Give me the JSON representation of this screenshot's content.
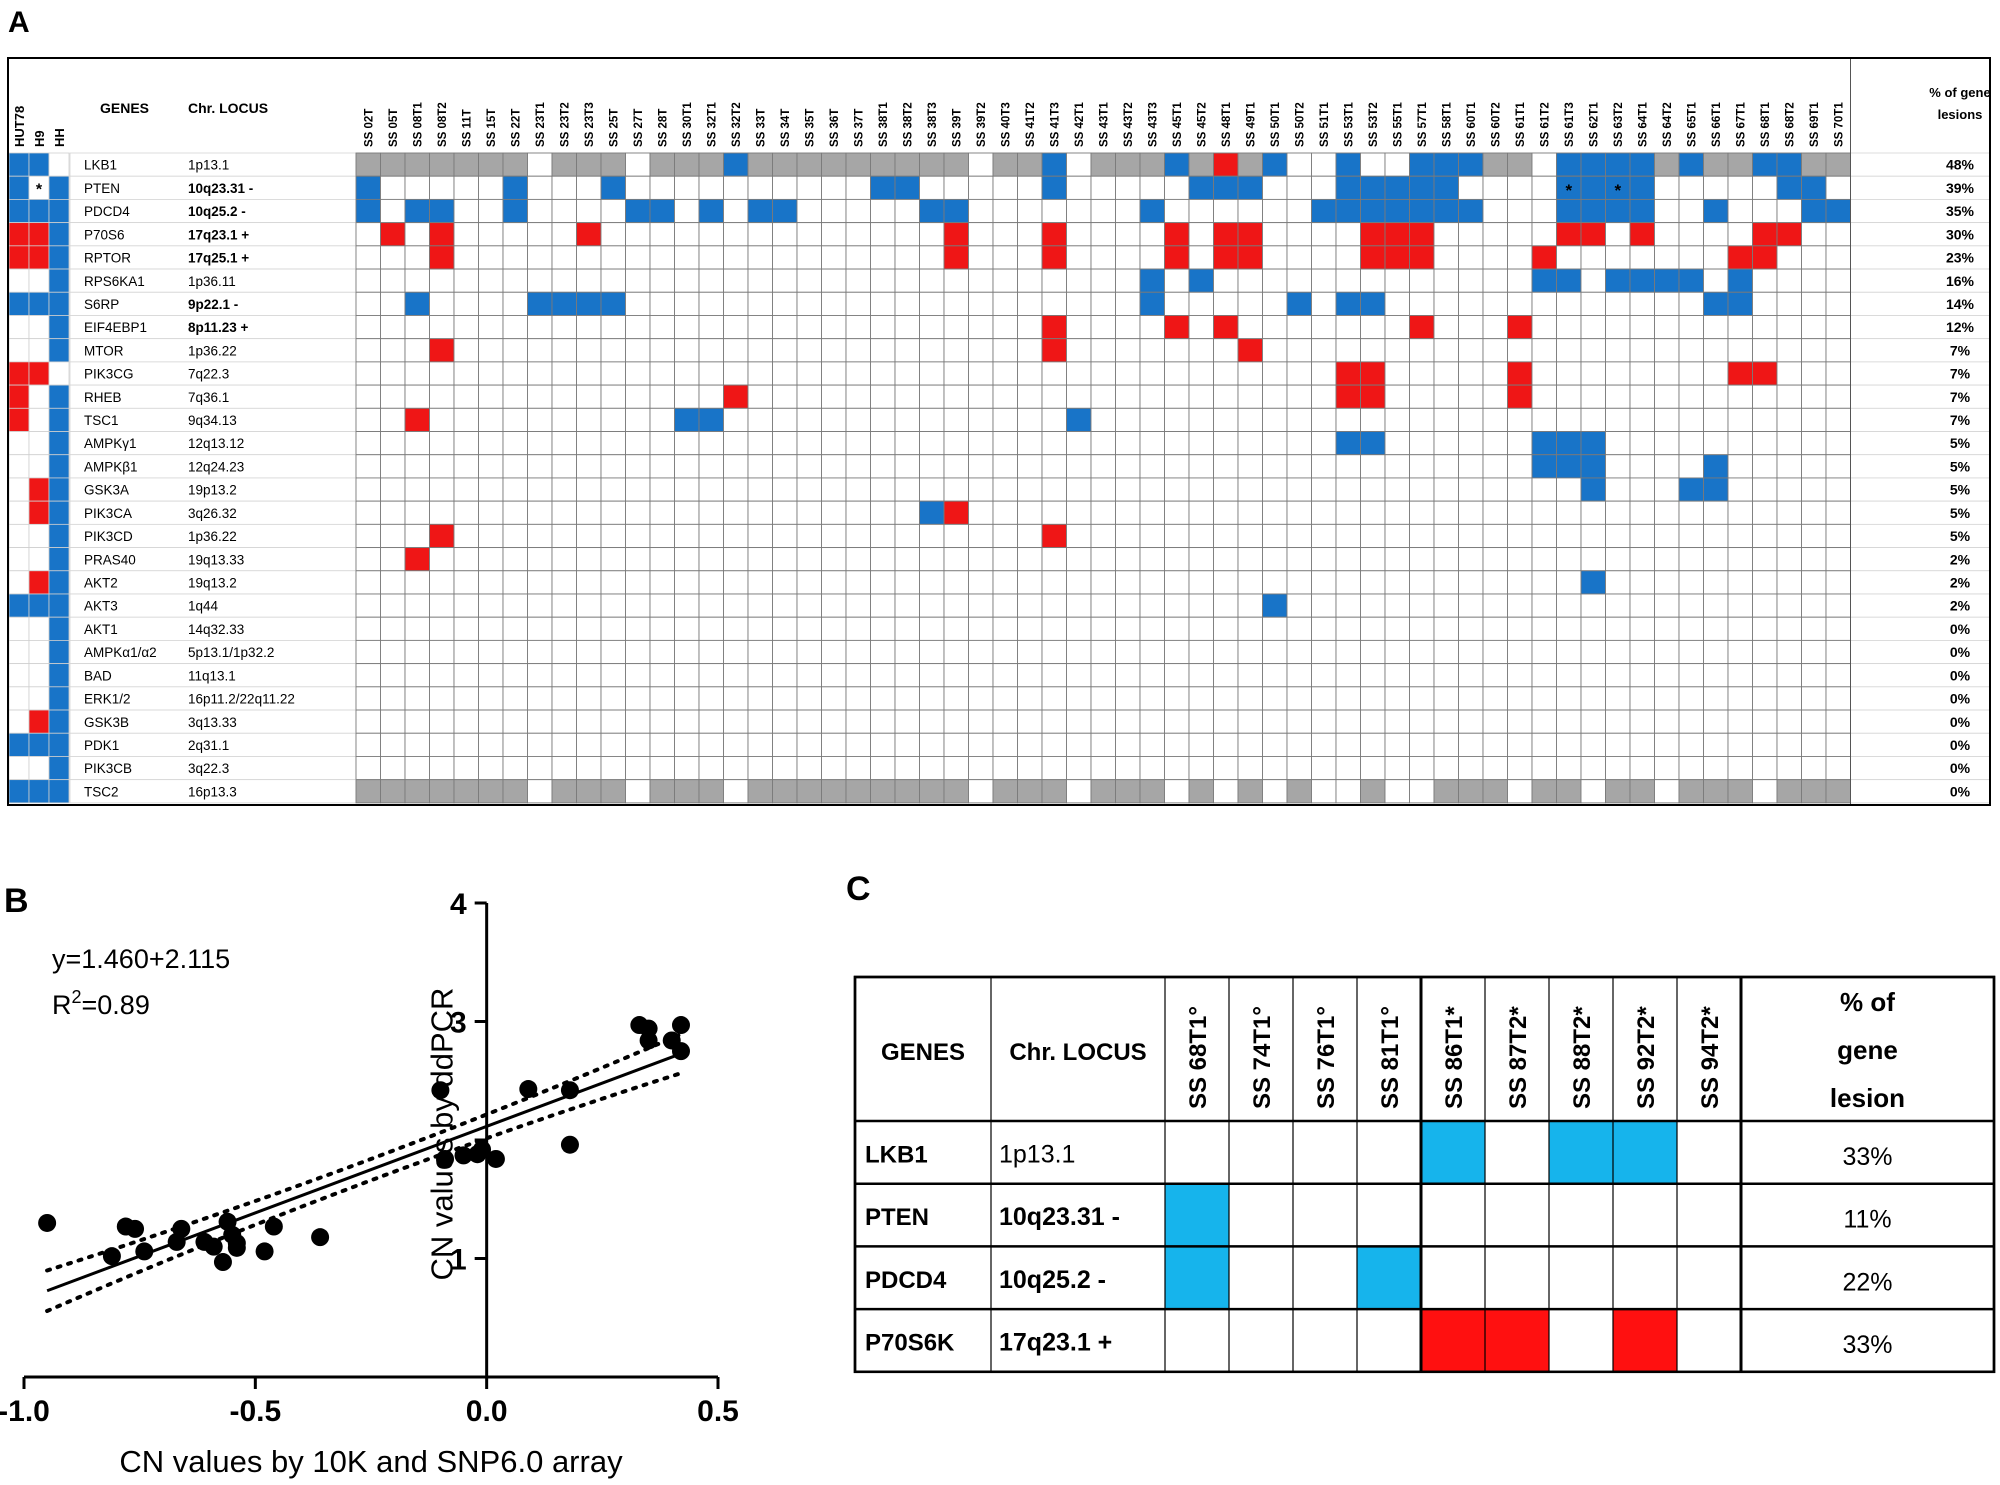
{
  "panel_labels": {
    "a": "A",
    "b": "B",
    "c": "C"
  },
  "colors": {
    "loss": "#1874c8",
    "gain": "#ef1616",
    "nodata": "#a6a6a6",
    "loss_c": "#16b4ec",
    "gain_c": "#ff1010"
  },
  "chart_data": [
    {
      "type": "table",
      "panel": "A",
      "cell_legend": {
        "L": "loss",
        "G": "gain",
        "X": "gray",
        "*": "asterisk",
        ".": "none"
      },
      "headers": {
        "genes": "GENES",
        "locus": "Chr. LOCUS",
        "pct_line1": "% of gene",
        "pct_line2": "lesions"
      },
      "cell_lines": [
        "HUT78",
        "H9",
        "HH"
      ],
      "samples": [
        "SS 02T",
        "SS 05T",
        "SS 08T1",
        "SS 08T2",
        "SS 11T",
        "SS 15T",
        "SS 22T",
        "SS 23T1",
        "SS 23T2",
        "SS 23T3",
        "SS 25T",
        "SS 27T",
        "SS 28T",
        "SS 30T1",
        "SS 32T1",
        "SS 32T2",
        "SS 33T",
        "SS 34T",
        "SS 35T",
        "SS 36T",
        "SS 37T",
        "SS 38T1",
        "SS 38T2",
        "SS 38T3",
        "SS 39T",
        "SS 39T2",
        "SS 40T3",
        "SS 41T2",
        "SS 41T3",
        "SS 42T1",
        "SS 43T1",
        "SS 43T2",
        "SS 43T3",
        "SS 45T1",
        "SS 45T2",
        "SS 48T1",
        "SS 49T1",
        "SS 50T1",
        "SS 50T2",
        "SS 51T1",
        "SS 53T1",
        "SS 53T2",
        "SS 55T1",
        "SS 57T1",
        "SS 58T1",
        "SS 60T1",
        "SS 60T2",
        "SS 61T1",
        "SS 61T2",
        "SS 61T3",
        "SS 62T1",
        "SS 63T2",
        "SS 64T1",
        "SS 64T2",
        "SS 65T1",
        "SS 66T1",
        "SS 67T1",
        "SS 68T1",
        "SS 68T2",
        "SS 69T1",
        "SS 70T1"
      ],
      "rows": [
        {
          "gene": "LKB1",
          "locus": "1p13.1",
          "bold": false,
          "pct": "48%",
          "cl": "LL.",
          "cells": "XXXXXXX.XXX.XXXLXXXXXXXXX.XXL.XXXLXGXL..L..LLLXX.LLLLXLXXLLXX"
        },
        {
          "gene": "PTEN",
          "locus": "10q23.31 -",
          "bold": true,
          "pct": "39%",
          "cl": "L*L",
          "cells": "L.....L...L..........LL.....L.....LLL...LLLLL....*L*L.....LL.."
        },
        {
          "gene": "PDCD4",
          "locus": "10q25.2 -",
          "bold": true,
          "pct": "35%",
          "cl": "LLL",
          "cells": "L.LL..L....LL.L.LL.....LL.......L......LLLLLLL...LLLL..L...LLL.."
        },
        {
          "gene": "P70S6",
          "locus": "17q23.1 +",
          "bold": true,
          "pct": "30%",
          "cl": "GGL",
          "cells": ".G.G.....G..............G...G....G.GG....GGG.....GG.G....GG.."
        },
        {
          "gene": "RPTOR",
          "locus": "17q25.1 +",
          "bold": true,
          "pct": "23%",
          "cl": "GGL",
          "cells": "...G....................G...G....G.GG....GGG....G.......GG.."
        },
        {
          "gene": "RPS6KA1",
          "locus": "1p36.11",
          "bold": false,
          "pct": "16%",
          "cl": "..L",
          "cells": "................................L.L.............LL.LLLL.L..."
        },
        {
          "gene": "S6RP",
          "locus": "9p22.1 -",
          "bold": true,
          "pct": "14%",
          "cl": "LLL",
          "cells": "..L....LLLL.....................L.....L.LL.............LL.."
        },
        {
          "gene": "EIF4EBP1",
          "locus": "8p11.23 +",
          "bold": true,
          "pct": "12%",
          "cl": "..L",
          "cells": "............................G....G.G.......G...G..........."
        },
        {
          "gene": "MTOR",
          "locus": "1p36.22",
          "bold": false,
          "pct": "7%",
          "cl": "..L",
          "cells": "...G........................G.......G......................."
        },
        {
          "gene": "PIK3CG",
          "locus": "7q22.3",
          "bold": false,
          "pct": "7%",
          "cl": "GG.",
          "cells": "........................................GG.....G........GG.."
        },
        {
          "gene": "RHEB",
          "locus": "7q36.1",
          "bold": false,
          "pct": "7%",
          "cl": "G.L",
          "cells": "...............G........................GG.....G............"
        },
        {
          "gene": "TSC1",
          "locus": "9q34.13",
          "bold": false,
          "pct": "7%",
          "cl": "G.L",
          "cells": "..G..........LL..............L..............................."
        },
        {
          "gene": "AMPKγ1",
          "locus": "12q13.12",
          "bold": false,
          "pct": "5%",
          "cl": "..L",
          "cells": "........................................LL......LLL........."
        },
        {
          "gene": "AMPKβ1",
          "locus": "12q24.23",
          "bold": false,
          "pct": "5%",
          "cl": "..L",
          "cells": "................................................LLL....L....."
        },
        {
          "gene": "GSK3A",
          "locus": "19p13.2",
          "bold": false,
          "pct": "5%",
          "cl": ".GL",
          "cells": "..................................................L...LL......"
        },
        {
          "gene": "PIK3CA",
          "locus": "3q26.32",
          "bold": false,
          "pct": "5%",
          "cl": ".GL",
          "cells": ".......................LG...................................."
        },
        {
          "gene": "PIK3CD",
          "locus": "1p36.22",
          "bold": false,
          "pct": "5%",
          "cl": "..L",
          "cells": "...G........................G................................"
        },
        {
          "gene": "PRAS40",
          "locus": "19q13.33",
          "bold": false,
          "pct": "2%",
          "cl": "..L",
          "cells": "..G.........................................................."
        },
        {
          "gene": "AKT2",
          "locus": "19q13.2",
          "bold": false,
          "pct": "2%",
          "cl": ".GL",
          "cells": "..................................................L.........."
        },
        {
          "gene": "AKT3",
          "locus": "1q44",
          "bold": false,
          "pct": "2%",
          "cl": "LLL",
          "cells": ".....................................L......................."
        },
        {
          "gene": "AKT1",
          "locus": "14q32.33",
          "bold": false,
          "pct": "0%",
          "cl": "..L",
          "cells": "............................................................."
        },
        {
          "gene": "AMPKα1/α2",
          "locus": "5p13.1/1p32.2",
          "bold": false,
          "pct": "0%",
          "cl": "..L",
          "cells": "............................................................."
        },
        {
          "gene": "BAD",
          "locus": "11q13.1",
          "bold": false,
          "pct": "0%",
          "cl": "..L",
          "cells": "............................................................."
        },
        {
          "gene": "ERK1/2",
          "locus": "16p11.2/22q11.22",
          "bold": false,
          "pct": "0%",
          "cl": "..L",
          "cells": "............................................................."
        },
        {
          "gene": "GSK3B",
          "locus": "3q13.33",
          "bold": false,
          "pct": "0%",
          "cl": ".GL",
          "cells": "............................................................."
        },
        {
          "gene": "PDK1",
          "locus": "2q31.1",
          "bold": false,
          "pct": "0%",
          "cl": "LLL",
          "cells": "............................................................."
        },
        {
          "gene": "PIK3CB",
          "locus": "3q22.3",
          "bold": false,
          "pct": "0%",
          "cl": "..L",
          "cells": "............................................................."
        },
        {
          "gene": "TSC2",
          "locus": "16p13.3",
          "bold": false,
          "pct": "0%",
          "cl": "LLL",
          "cells": "XXXXXXX.XXX.XXX.XXXXXXXXX.XXX.XXX.X.X.X..X..XXX.XX.XX.XXX.XXX."
        }
      ]
    },
    {
      "type": "scatter",
      "panel": "B",
      "xlabel": "CN values by 10K and SNP6.0 array",
      "ylabel": "CN values by ddPCR",
      "xlim": [
        -1.0,
        0.5
      ],
      "ylim": [
        0,
        4
      ],
      "xticks": [
        -1.0,
        -0.5,
        0.0,
        0.5
      ],
      "xtick_labels": [
        "-1.0",
        "-0.5",
        "0.0",
        "0.5"
      ],
      "yticks": [
        1,
        2,
        3,
        4
      ],
      "ytick_labels": [
        "1",
        "",
        "3",
        "4"
      ],
      "equation": "y=1.460+2.115",
      "r2_prefix": "R",
      "r2_sup": "2",
      "r2_suffix": "=0.89",
      "fit": {
        "slope": 1.46,
        "intercept": 2.115
      },
      "ci_offset": 0.09,
      "points": [
        {
          "x": -0.95,
          "y": 1.3
        },
        {
          "x": -0.81,
          "y": 1.02
        },
        {
          "x": -0.78,
          "y": 1.27
        },
        {
          "x": -0.76,
          "y": 1.25
        },
        {
          "x": -0.74,
          "y": 1.06
        },
        {
          "x": -0.67,
          "y": 1.14
        },
        {
          "x": -0.66,
          "y": 1.25
        },
        {
          "x": -0.61,
          "y": 1.14
        },
        {
          "x": -0.59,
          "y": 1.1
        },
        {
          "x": -0.57,
          "y": 0.97
        },
        {
          "x": -0.56,
          "y": 1.31
        },
        {
          "x": -0.55,
          "y": 1.2
        },
        {
          "x": -0.54,
          "y": 1.13
        },
        {
          "x": -0.54,
          "y": 1.09
        },
        {
          "x": -0.48,
          "y": 1.06
        },
        {
          "x": -0.46,
          "y": 1.27
        },
        {
          "x": -0.36,
          "y": 1.18
        },
        {
          "x": -0.1,
          "y": 2.42
        },
        {
          "x": -0.09,
          "y": 1.84
        },
        {
          "x": -0.05,
          "y": 1.87
        },
        {
          "x": -0.02,
          "y": 1.88
        },
        {
          "x": -0.01,
          "y": 1.92
        },
        {
          "x": 0.02,
          "y": 1.84
        },
        {
          "x": 0.09,
          "y": 2.43
        },
        {
          "x": 0.18,
          "y": 2.42
        },
        {
          "x": 0.18,
          "y": 1.96
        },
        {
          "x": 0.33,
          "y": 2.97
        },
        {
          "x": 0.35,
          "y": 2.94
        },
        {
          "x": 0.35,
          "y": 2.84
        },
        {
          "x": 0.4,
          "y": 2.84
        },
        {
          "x": 0.42,
          "y": 2.97
        },
        {
          "x": 0.42,
          "y": 2.75
        }
      ]
    },
    {
      "type": "table",
      "panel": "C",
      "headers": {
        "genes": "GENES",
        "locus": "Chr. LOCUS",
        "pct_line1": "% of",
        "pct_line2": "gene",
        "pct_line3": "lesion"
      },
      "samples": [
        "SS 68T1°",
        "SS 74T1°",
        "SS 76T1°",
        "SS 81T1°",
        "SS 86T1*",
        "SS 87T2*",
        "SS 88T2*",
        "SS 92T2*",
        "SS 94T2*"
      ],
      "rows": [
        {
          "gene": "LKB1",
          "locus": "1p13.1",
          "bold": false,
          "pct": "33%",
          "cells": "....L.LL."
        },
        {
          "gene": "PTEN",
          "locus": "10q23.31 -",
          "bold": true,
          "pct": "11%",
          "cells": "L........"
        },
        {
          "gene": "PDCD4",
          "locus": "10q25.2 -",
          "bold": true,
          "pct": "22%",
          "cells": "L..L....."
        },
        {
          "gene": "P70S6K",
          "locus": "17q23.1 +",
          "bold": true,
          "pct": "33%",
          "cells": "....GG.G."
        }
      ]
    }
  ]
}
